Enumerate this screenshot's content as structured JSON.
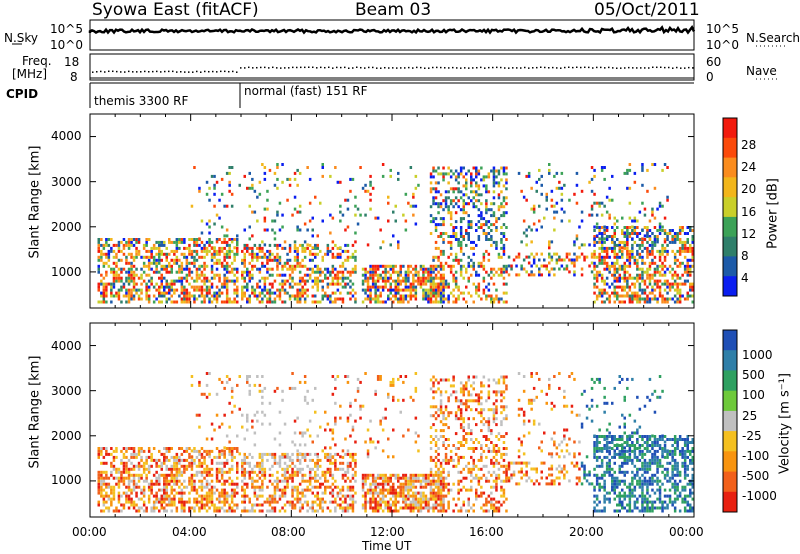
{
  "header": {
    "station": "Syowa East (fitACF)",
    "beam": "Beam 03",
    "date": "05/Oct/2011"
  },
  "strip_labels": {
    "nsky": "N.Sky",
    "nsky_ticks": [
      "10^5",
      "10^0"
    ],
    "nsearch": "N.Search",
    "freq_label": "Freq.",
    "freq_unit": "[MHz]",
    "freq_ticks": [
      "18",
      "8"
    ],
    "nave": "Nave",
    "nave_ticks": [
      "60",
      "0"
    ],
    "cpid": "CPID",
    "cpid_modes": [
      "themis 3300 RF",
      "normal (fast) 151 RF"
    ]
  },
  "chart_data": [
    {
      "type": "heatmap",
      "ylabel": "Slant Range [km]",
      "yticks": [
        1000,
        2000,
        3000,
        4000
      ],
      "ylim": [
        200,
        4500
      ],
      "xlim_hours": [
        0,
        24
      ],
      "colorbar": {
        "label": "Power [dB]",
        "ticks": [
          "28",
          "24",
          "20",
          "16",
          "12",
          "8",
          "4"
        ],
        "colors": [
          "#f21a0d",
          "#fb4a0a",
          "#fa8c1e",
          "#f2b61b",
          "#c9cf2a",
          "#3ca257",
          "#2f7f6a",
          "#1c5aa8",
          "#0a1ef0"
        ]
      }
    },
    {
      "type": "heatmap",
      "ylabel": "Slant Range [km]",
      "yticks": [
        1000,
        2000,
        3000,
        4000
      ],
      "ylim": [
        200,
        4500
      ],
      "xlim_hours": [
        0,
        24
      ],
      "xlabel": "Time UT",
      "xticks": [
        "00:00",
        "04:00",
        "08:00",
        "12:00",
        "16:00",
        "20:00",
        "00:00"
      ],
      "colorbar": {
        "label": "Velocity [m s⁻¹]",
        "ticks": [
          "1000",
          "500",
          "100",
          "25",
          "-25",
          "-100",
          "-500",
          "-1000"
        ],
        "colors": [
          "#1f4fb5",
          "#2f7fa8",
          "#2ea060",
          "#6ec93a",
          "#c0c0c0",
          "#f4c020",
          "#f8940f",
          "#f2601a",
          "#e82010"
        ]
      }
    }
  ]
}
